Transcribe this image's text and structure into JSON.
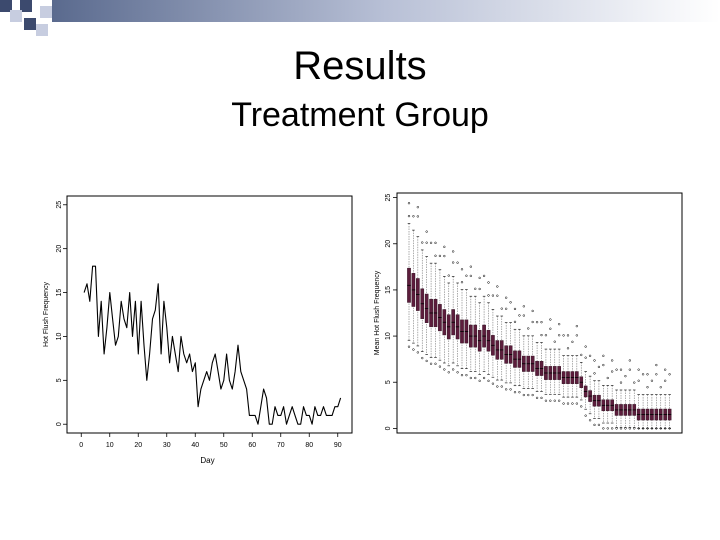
{
  "slide": {
    "title": "Results",
    "subtitle": "Treatment Group"
  },
  "colors": {
    "deco_dark": "#3c4a6e",
    "deco_light": "#c7cde0",
    "line": "#000000",
    "box_fill": "#5c1d3c"
  },
  "chart_data": [
    {
      "type": "line",
      "title": "",
      "xlabel": "Day",
      "ylabel": "Hot Flush Frequency",
      "xlim": [
        -5,
        95
      ],
      "ylim": [
        -1,
        26
      ],
      "xticks": [
        "0",
        "10",
        "20",
        "30",
        "40",
        "50",
        "60",
        "70",
        "80",
        "90"
      ],
      "yticks": [
        "0",
        "5",
        "10",
        "15",
        "20",
        "25"
      ],
      "grid": false,
      "series": [
        {
          "x": [
            1,
            2,
            3,
            4,
            5,
            6,
            7,
            8,
            9,
            10,
            11,
            12,
            13,
            14,
            15,
            16,
            17,
            18,
            19,
            20,
            21,
            22,
            23,
            24,
            25,
            26,
            27,
            28,
            29,
            30,
            31,
            32,
            33,
            34,
            35,
            36,
            37,
            38,
            39,
            40,
            41,
            42,
            43,
            44,
            45,
            46,
            47,
            48,
            49,
            50,
            51,
            52,
            53,
            54,
            55,
            56,
            57,
            58,
            59,
            60,
            61,
            62,
            63,
            64,
            65,
            66,
            67,
            68,
            69,
            70,
            71,
            72,
            73,
            74,
            75,
            76,
            77,
            78,
            79,
            80,
            81,
            82,
            83,
            84,
            85,
            86,
            87,
            88,
            89,
            90,
            91
          ],
          "y": [
            15,
            16,
            14,
            18,
            18,
            10,
            14,
            8,
            11,
            15,
            12,
            9,
            10,
            14,
            12,
            11,
            15,
            10,
            14,
            8,
            14,
            9,
            5,
            8,
            12,
            13,
            16,
            8,
            14,
            11,
            7,
            10,
            8,
            6,
            10,
            8,
            7,
            8,
            6,
            7,
            2,
            4,
            5,
            6,
            5,
            7,
            8,
            6,
            4,
            5,
            8,
            5,
            4,
            6,
            9,
            6,
            5,
            4,
            1,
            1,
            1,
            0,
            2,
            4,
            3,
            0,
            0,
            2,
            1,
            1,
            2,
            0,
            1,
            2,
            1,
            0,
            0,
            2,
            1,
            1,
            0,
            2,
            1,
            1,
            2,
            1,
            1,
            1,
            2,
            2,
            3
          ]
        }
      ]
    },
    {
      "type": "box",
      "title": "",
      "xlabel": "",
      "ylabel": "Mean Hot Flush Frequency",
      "ylim": [
        -0.5,
        25.5
      ],
      "yticks": [
        "0",
        "5",
        "10",
        "15",
        "20",
        "25"
      ],
      "grid": false,
      "medians": [
        15.5,
        15.0,
        14.5,
        13.5,
        13.0,
        12.5,
        12.5,
        12.0,
        11.5,
        11.0,
        11.5,
        11.0,
        10.5,
        10.5,
        10.0,
        10.0,
        9.5,
        10.0,
        9.5,
        9.0,
        8.5,
        8.5,
        8.0,
        8.0,
        7.5,
        7.5,
        7.0,
        7.0,
        7.0,
        6.5,
        6.5,
        6.0,
        6.0,
        6.0,
        6.0,
        5.5,
        5.5,
        5.5,
        5.5,
        5.0,
        4.0,
        3.5,
        3.0,
        3.0,
        2.5,
        2.5,
        2.5,
        2.0,
        2.0,
        2.0,
        2.0,
        2.0,
        1.5,
        1.5,
        1.5,
        1.5,
        1.5,
        1.5,
        1.5,
        1.5
      ]
    }
  ]
}
